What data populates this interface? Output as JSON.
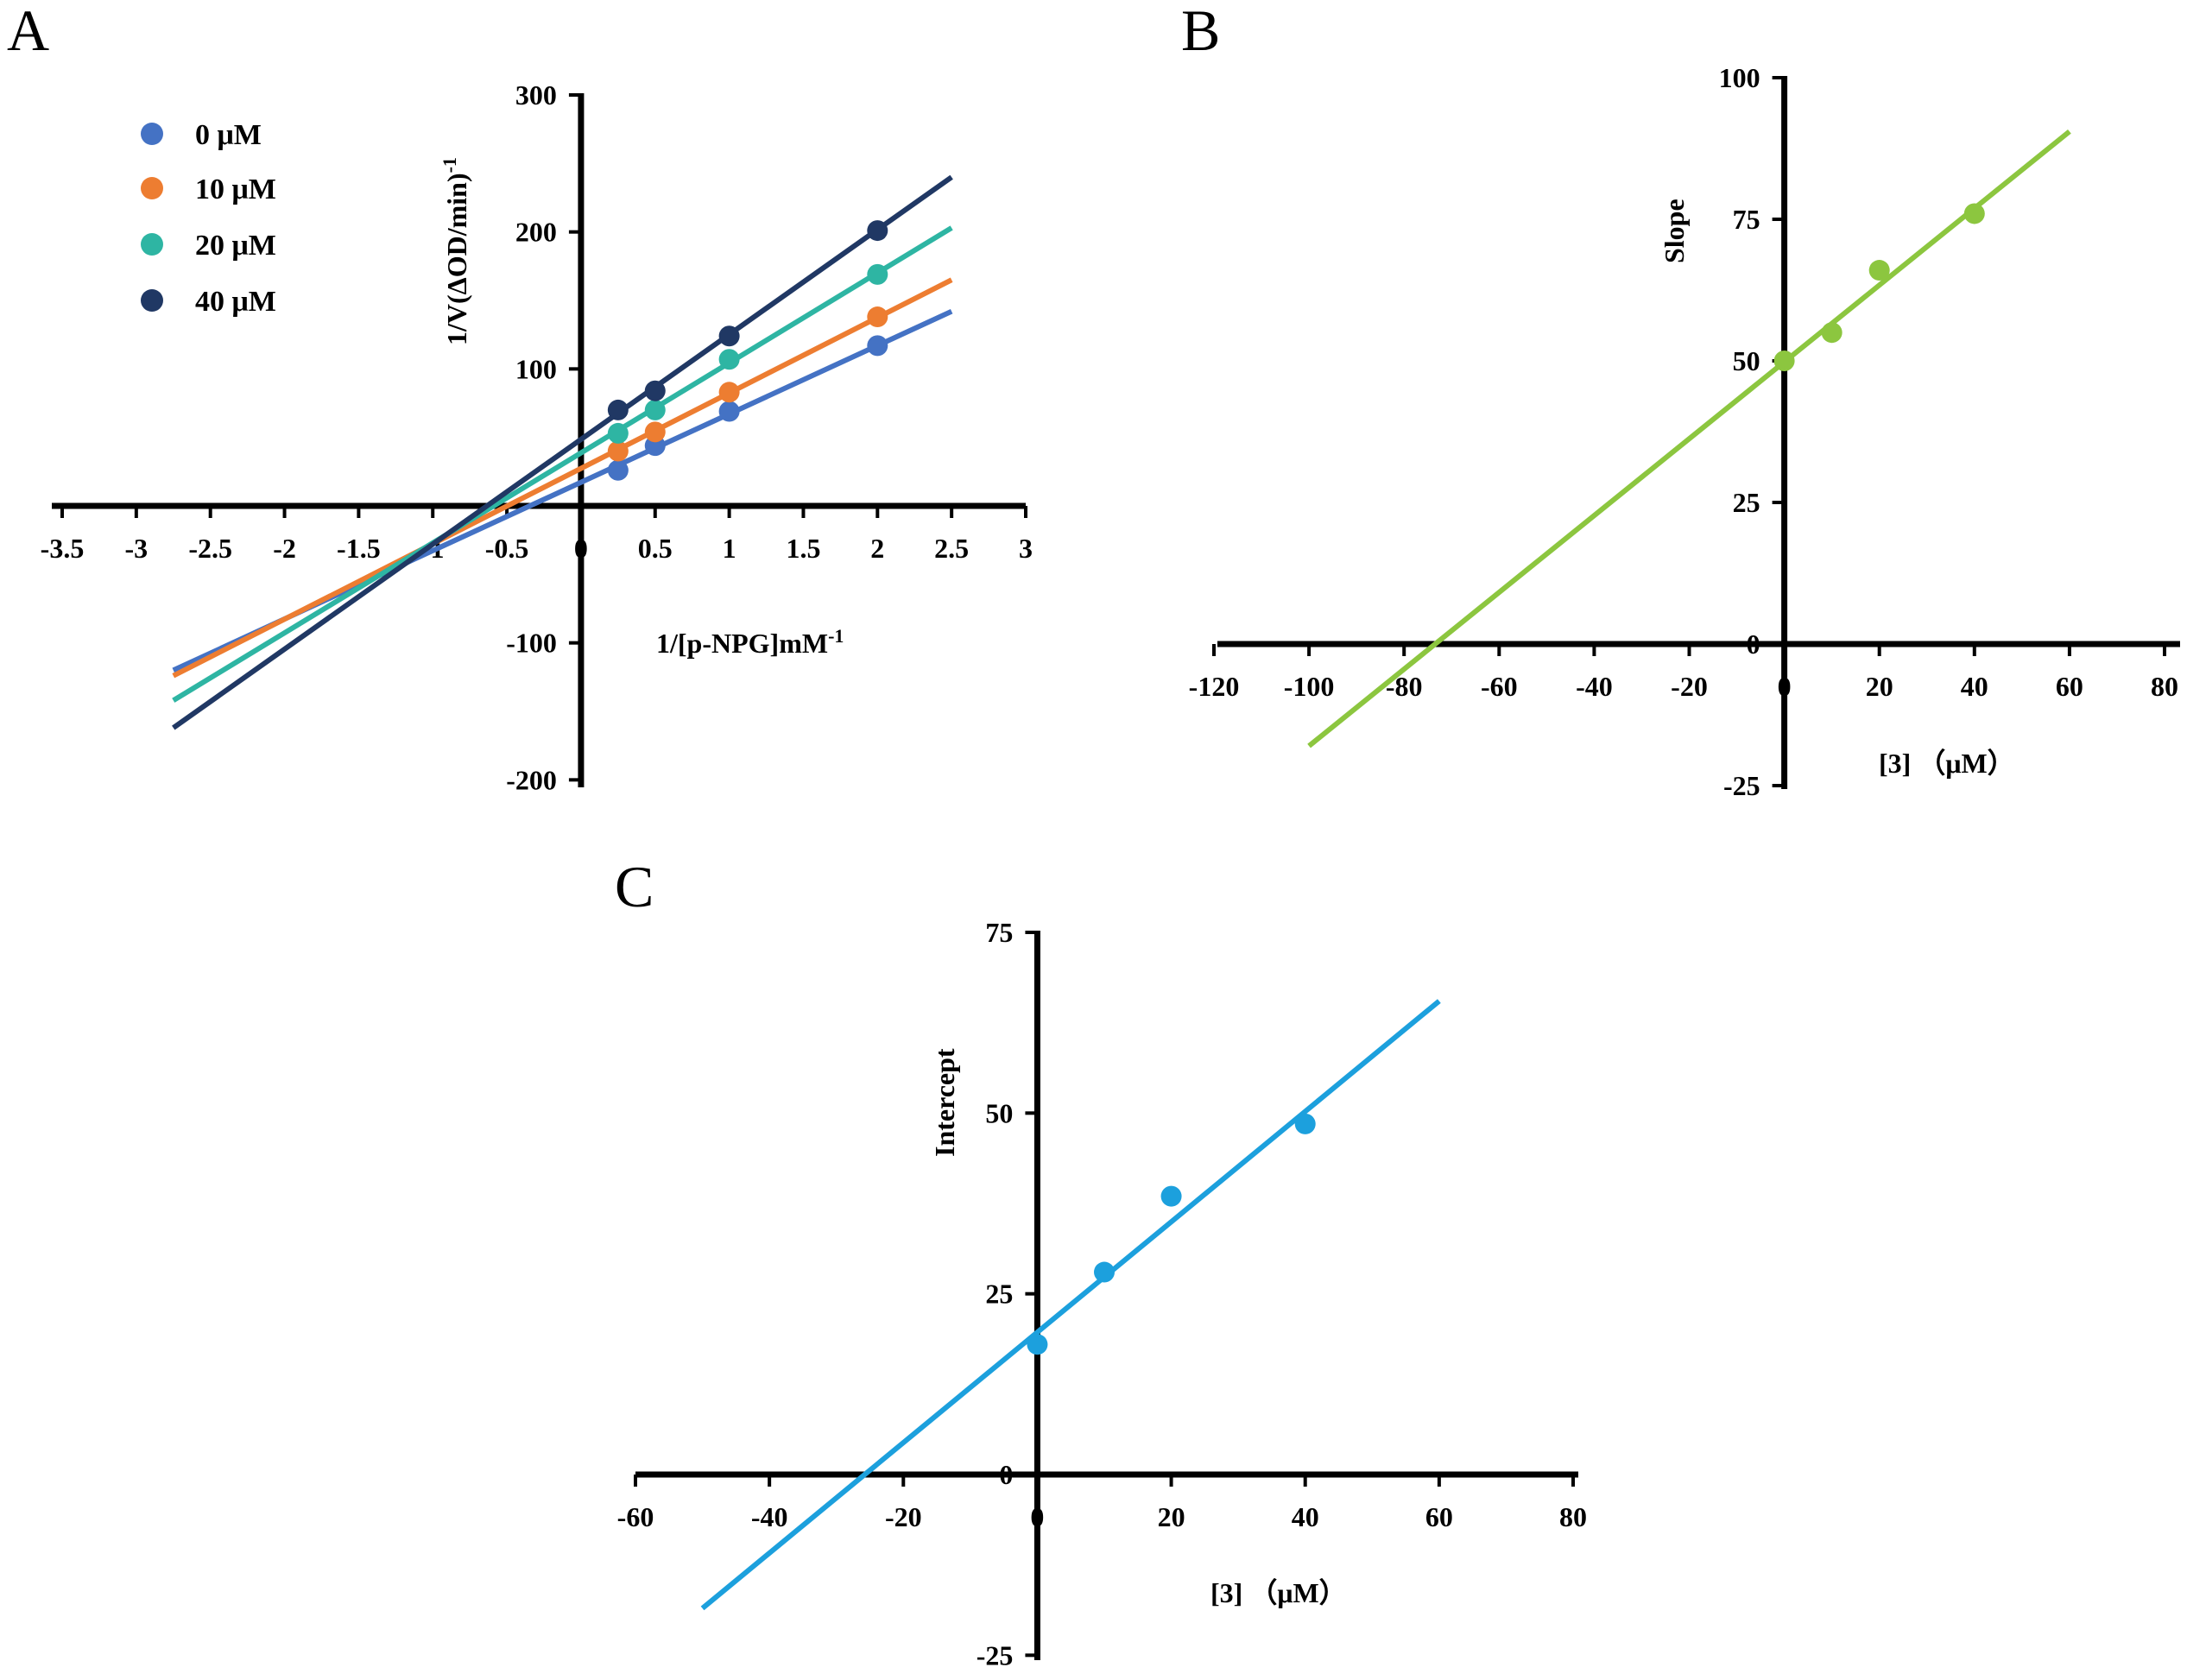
{
  "figure": {
    "panels": [
      "A",
      "B",
      "C"
    ]
  },
  "chart_data": [
    {
      "panel": "A",
      "type": "line",
      "title": "",
      "xlabel": "1/[p-NPG]mM",
      "xlabel_sup": "-1",
      "ylabel": "1/V(ΔOD/min)",
      "ylabel_sup": "-1",
      "xlim": [
        -3.5,
        3
      ],
      "ylim": [
        -200,
        300
      ],
      "xticks": [
        -3.5,
        -3,
        -2.5,
        -2,
        -1.5,
        -1,
        -0.5,
        0,
        0.5,
        1,
        1.5,
        2,
        2.5,
        3
      ],
      "xtick_labels": [
        "-3.5",
        "-3",
        "-2.5",
        "-2",
        "-1.5",
        "-1",
        "-0.5",
        "0",
        "0.5",
        "1",
        "1.5",
        "2",
        "2.5",
        "3"
      ],
      "yticks": [
        -200,
        -100,
        100,
        200,
        300
      ],
      "ytick_labels": [
        "-200",
        "-100",
        "100",
        "200",
        "300"
      ],
      "legend_position": "top-left",
      "series": [
        {
          "name": "0 μM",
          "color": "#4472c4",
          "x": [
            0.25,
            0.5,
            1,
            2
          ],
          "y": [
            26,
            44,
            69,
            117
          ],
          "fit_x": [
            -2.75,
            2.5
          ],
          "fit_y": [
            -120,
            142
          ]
        },
        {
          "name": "10 μM",
          "color": "#ed7d31",
          "x": [
            0.25,
            0.5,
            1,
            2
          ],
          "y": [
            40,
            54,
            83,
            138
          ],
          "fit_x": [
            -2.75,
            2.5
          ],
          "fit_y": [
            -124,
            165
          ]
        },
        {
          "name": "20 μM",
          "color": "#2eb5a3",
          "x": [
            0.25,
            0.5,
            1,
            2
          ],
          "y": [
            53,
            70,
            107,
            169
          ],
          "fit_x": [
            -2.75,
            2.5
          ],
          "fit_y": [
            -142,
            203
          ]
        },
        {
          "name": "40 μM",
          "color": "#203864",
          "x": [
            0.25,
            0.5,
            1,
            2
          ],
          "y": [
            70,
            84,
            124,
            201
          ],
          "fit_x": [
            -2.75,
            2.5
          ],
          "fit_y": [
            -162,
            240
          ]
        }
      ]
    },
    {
      "panel": "B",
      "type": "scatter",
      "title": "",
      "xlabel": "[3] （μM）",
      "ylabel": "Slope",
      "xlim": [
        -120,
        80
      ],
      "ylim": [
        -25,
        100
      ],
      "xticks": [
        -120,
        -100,
        -80,
        -60,
        -40,
        -20,
        0,
        20,
        40,
        60,
        80
      ],
      "xtick_labels": [
        "-120",
        "-100",
        "-80",
        "-60",
        "-40",
        "-20",
        "0",
        "20",
        "40",
        "60",
        "80"
      ],
      "yticks": [
        -25,
        0,
        25,
        50,
        75,
        100
      ],
      "ytick_labels": [
        "-25",
        "0",
        "25",
        "50",
        "75",
        "100"
      ],
      "series": [
        {
          "name": "Slope",
          "color": "#8cc63f",
          "x": [
            0,
            10,
            20,
            40
          ],
          "y": [
            50,
            55,
            66,
            76
          ],
          "fit_x": [
            -100,
            60
          ],
          "fit_y": [
            -18,
            90.5
          ]
        }
      ]
    },
    {
      "panel": "C",
      "type": "scatter",
      "title": "",
      "xlabel": "[3] （μM）",
      "ylabel": "Intercept",
      "xlim": [
        -60,
        80
      ],
      "ylim": [
        -25,
        75
      ],
      "xticks": [
        -60,
        -40,
        -20,
        0,
        20,
        40,
        60,
        80
      ],
      "xtick_labels": [
        "-60",
        "-40",
        "-20",
        "0",
        "20",
        "40",
        "60",
        "80"
      ],
      "yticks": [
        -25,
        0,
        25,
        50,
        75
      ],
      "ytick_labels": [
        "-25",
        "0",
        "25",
        "50",
        "75"
      ],
      "series": [
        {
          "name": "Intercept",
          "color": "#1ca0dd",
          "x": [
            0,
            10,
            20,
            40
          ],
          "y": [
            18,
            28,
            38.5,
            48.5
          ],
          "fit_x": [
            -50,
            60
          ],
          "fit_y": [
            -18.5,
            65.5
          ]
        }
      ]
    }
  ]
}
